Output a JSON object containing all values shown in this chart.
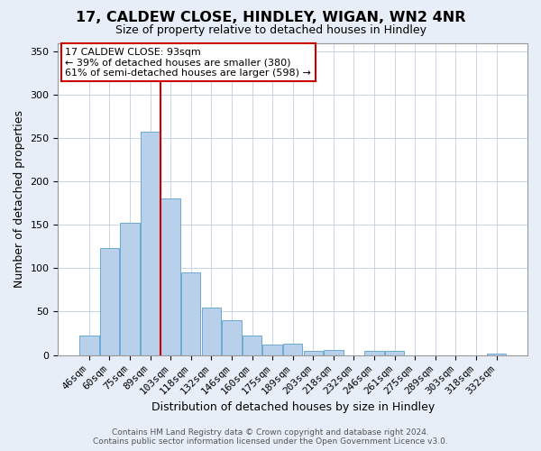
{
  "title": "17, CALDEW CLOSE, HINDLEY, WIGAN, WN2 4NR",
  "subtitle": "Size of property relative to detached houses in Hindley",
  "xlabel": "Distribution of detached houses by size in Hindley",
  "ylabel": "Number of detached properties",
  "bar_labels": [
    "46sqm",
    "60sqm",
    "75sqm",
    "89sqm",
    "103sqm",
    "118sqm",
    "132sqm",
    "146sqm",
    "160sqm",
    "175sqm",
    "189sqm",
    "203sqm",
    "218sqm",
    "232sqm",
    "246sqm",
    "261sqm",
    "275sqm",
    "289sqm",
    "303sqm",
    "318sqm",
    "332sqm"
  ],
  "bar_values": [
    22,
    123,
    152,
    258,
    181,
    95,
    55,
    40,
    22,
    12,
    13,
    5,
    6,
    0,
    5,
    5,
    0,
    0,
    0,
    0,
    2
  ],
  "bar_color": "#b8d0ea",
  "bar_edge_color": "#6aaad4",
  "vline_x_idx": 3.5,
  "vline_color": "#cc0000",
  "annotation_line1": "17 CALDEW CLOSE: 93sqm",
  "annotation_line2": "← 39% of detached houses are smaller (380)",
  "annotation_line3": "61% of semi-detached houses are larger (598) →",
  "annotation_box_color": "#ffffff",
  "annotation_box_edge_color": "#cc0000",
  "ylim": [
    0,
    360
  ],
  "yticks": [
    0,
    50,
    100,
    150,
    200,
    250,
    300,
    350
  ],
  "footer_line1": "Contains HM Land Registry data © Crown copyright and database right 2024.",
  "footer_line2": "Contains public sector information licensed under the Open Government Licence v3.0.",
  "bg_color": "#e8eef8",
  "plot_bg_color": "#ffffff",
  "grid_color": "#c8d4e8",
  "title_fontsize": 11.5,
  "subtitle_fontsize": 9,
  "axis_label_fontsize": 9,
  "tick_fontsize": 8,
  "annotation_fontsize": 8,
  "footer_fontsize": 6.5
}
